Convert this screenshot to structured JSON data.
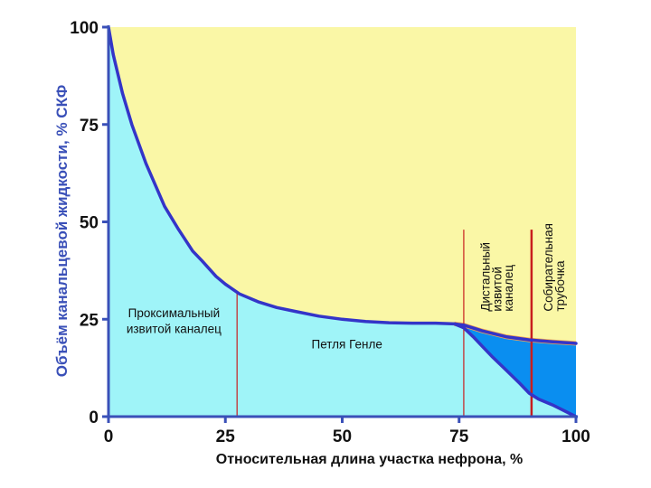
{
  "chart_data": {
    "type": "area",
    "xlabel": "Относительная длина участка нефрона, %",
    "ylabel": "Объём канальцевой жидкости, % СКФ",
    "xlim": [
      0,
      100
    ],
    "ylim": [
      0,
      100
    ],
    "xticks": [
      "0",
      "25",
      "50",
      "75",
      "100"
    ],
    "yticks": [
      "0",
      "25",
      "50",
      "75",
      "100"
    ],
    "grid": false,
    "series": [
      {
        "x": [
          0,
          1,
          3,
          5,
          8,
          10,
          12,
          15,
          18,
          20,
          23,
          25,
          28,
          32,
          36,
          40,
          45,
          50,
          55,
          60,
          65,
          70,
          74,
          76,
          80,
          85,
          90,
          95,
          100
        ],
        "values": [
          100,
          93,
          83,
          75,
          65,
          59.5,
          54,
          48,
          42.5,
          40,
          36,
          34,
          31.5,
          29.5,
          28,
          27,
          25.8,
          25,
          24.4,
          24.1,
          24,
          24,
          23.8,
          23.5,
          22,
          20.5,
          19.7,
          19.2,
          18.8
        ]
      },
      {
        "x": [
          74,
          76,
          78,
          80,
          82,
          85,
          88,
          90,
          92,
          95,
          100
        ],
        "values": [
          23.8,
          22.8,
          20.5,
          18,
          15.5,
          12,
          8.5,
          6,
          4.5,
          3,
          0
        ]
      }
    ],
    "annotations": [
      {
        "text": "Проксимальный",
        "x": 14,
        "y": 25.5
      },
      {
        "text": "извитой каналец",
        "x": 14,
        "y": 21.5
      },
      {
        "text": "Петля Генле",
        "x": 51,
        "y": 17.5
      },
      {
        "text": "Дистальный",
        "x": 81.5,
        "y": 27
      },
      {
        "text": "извитой",
        "x": 84,
        "y": 27
      },
      {
        "text": "каналец",
        "x": 86.5,
        "y": 27
      },
      {
        "text": "Собирательная",
        "x": 95,
        "y": 27
      },
      {
        "text": "трубочка",
        "x": 97.5,
        "y": 27
      }
    ],
    "segment_boundaries": [
      27.5,
      76,
      90.5
    ],
    "colors": {
      "background_fill": "#faf7a6",
      "proximal_henle_fill": "#9ff4f8",
      "distal_collecting_fill": "#0a8ef0",
      "volume_curve": "#3434c8",
      "top_band": "#f4a652",
      "boundary_lines": "#c81e1e",
      "axis": "#3a50b8",
      "ylabel_color": "#3a50b8"
    }
  }
}
